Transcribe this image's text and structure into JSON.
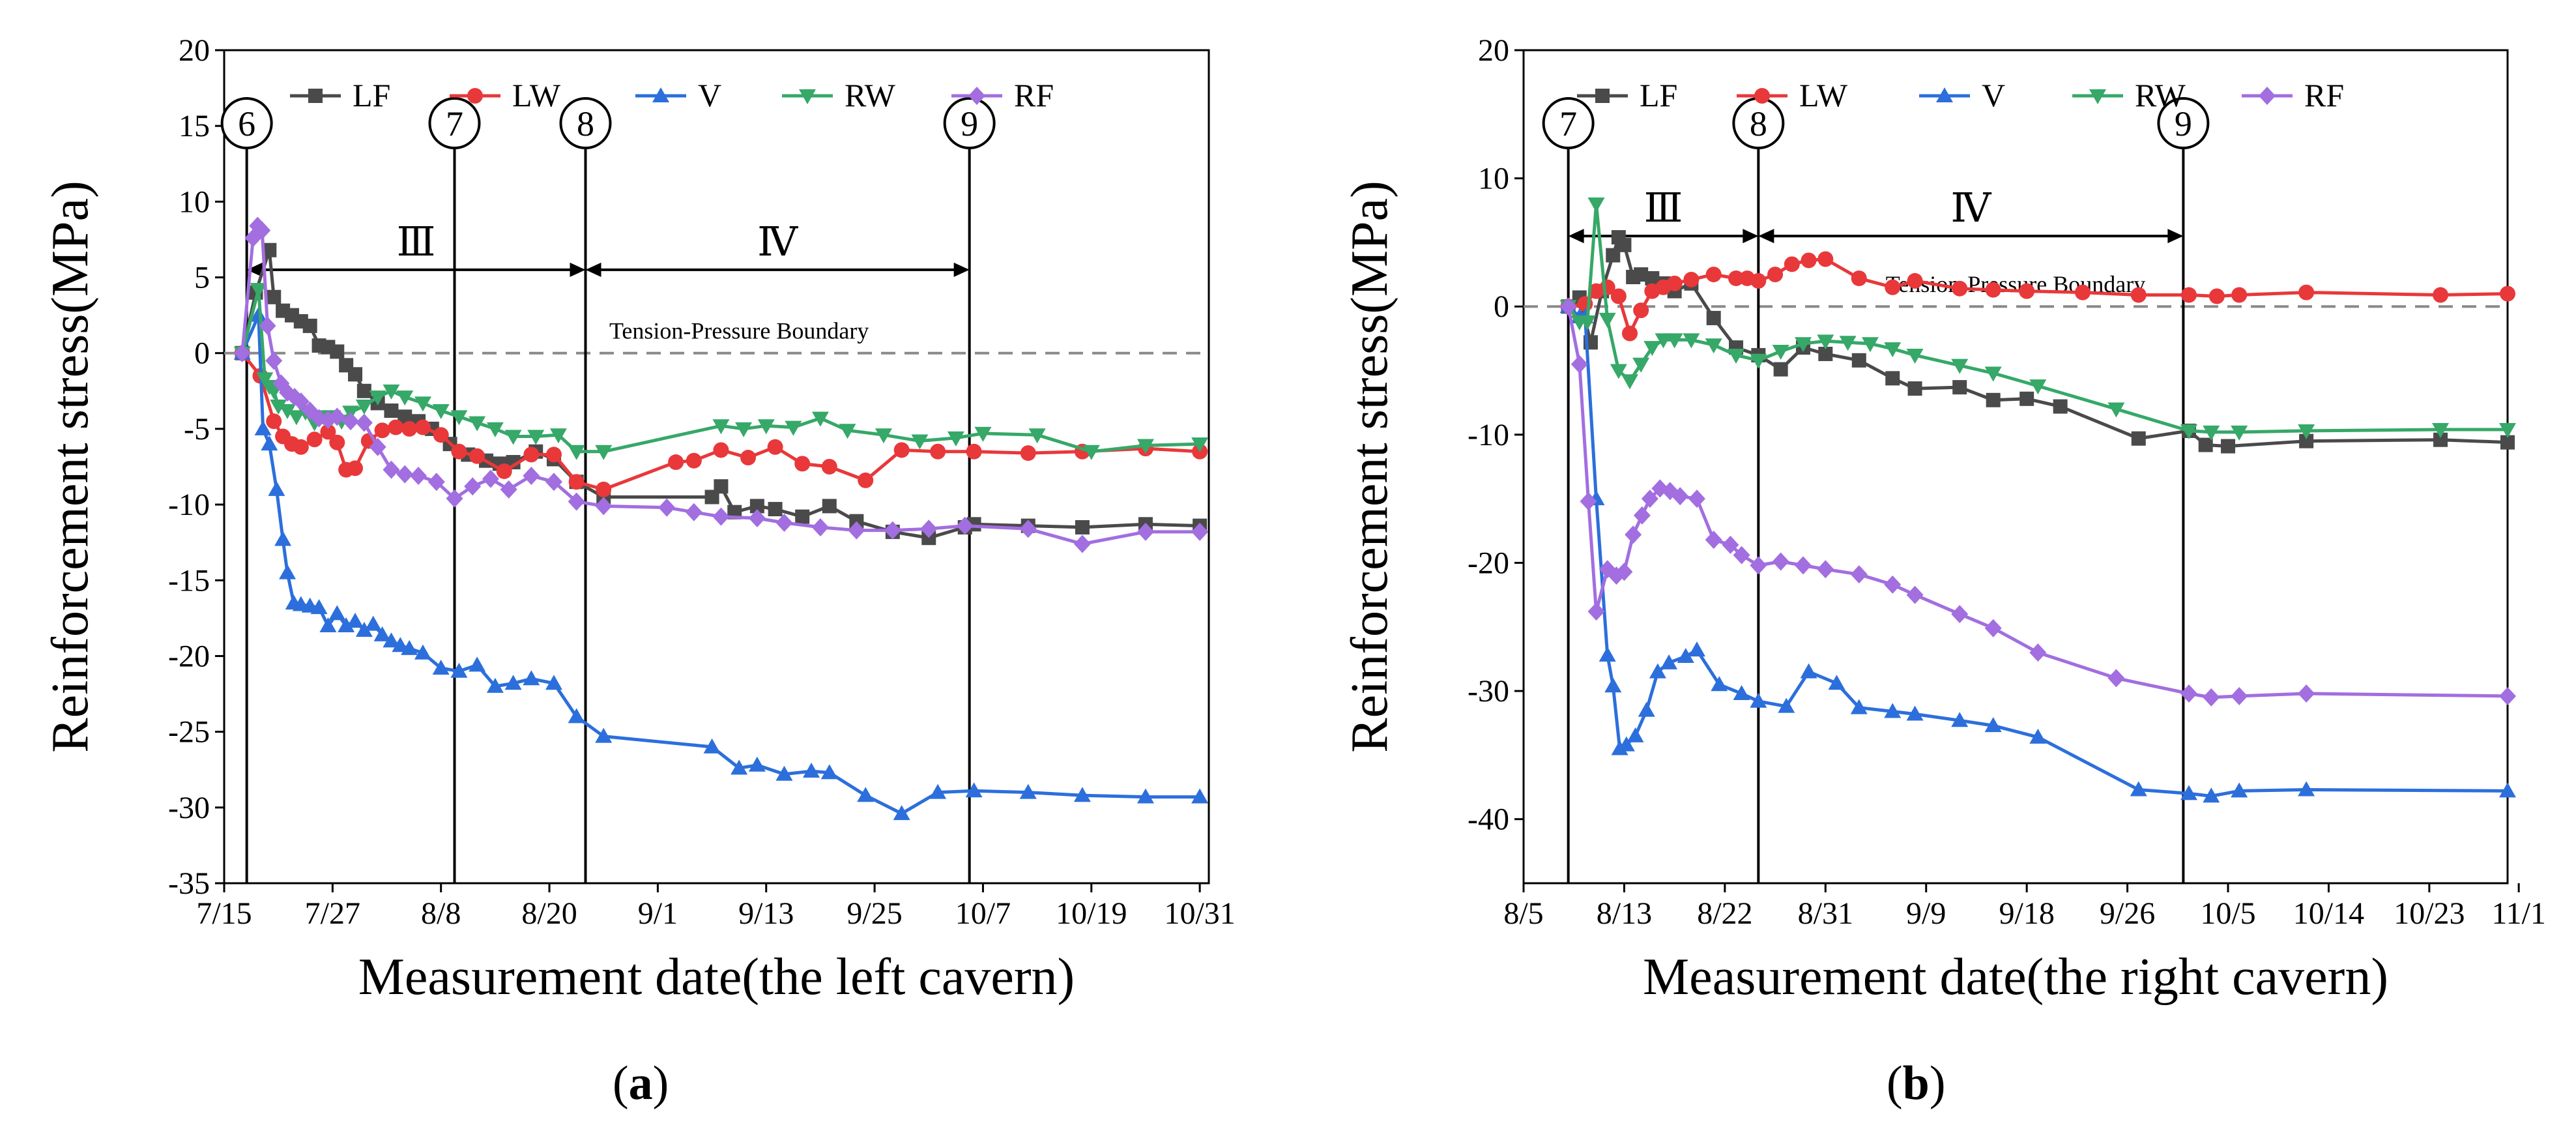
{
  "chart_data": [
    {
      "type": "line",
      "panel_label": "a",
      "title": "",
      "xlabel": "Measurement date(the left cavern)",
      "ylabel": "Reinforcement stress(MPa)",
      "x_unit": "day of year",
      "xlim": [
        196,
        305
      ],
      "ylim": [
        -35,
        20
      ],
      "x_ticks": [
        196,
        208,
        220,
        232,
        244,
        256,
        268,
        280,
        292,
        304
      ],
      "x_tick_labels": [
        "7/15",
        "7/27",
        "8/8",
        "8/20",
        "9/1",
        "9/13",
        "9/25",
        "10/7",
        "10/19",
        "10/31"
      ],
      "y_ticks": [
        -35,
        -30,
        -25,
        -20,
        -15,
        -10,
        -5,
        0,
        5,
        10,
        15,
        20
      ],
      "y_tick_labels": [
        "-35",
        "-30",
        "-25",
        "-20",
        "-15",
        "-10",
        "-5",
        "0",
        "5",
        "10",
        "15",
        "20"
      ],
      "legend_position": "top",
      "boundary": {
        "y": 0,
        "label": "Tension-Pressure Boundary",
        "label_x": 253
      },
      "stage_lines": [
        {
          "x": 198.5,
          "label": "6"
        },
        {
          "x": 221.5,
          "label": "7"
        },
        {
          "x": 236,
          "label": "8"
        },
        {
          "x": 278.5,
          "label": "9"
        }
      ],
      "stages": [
        {
          "label": "Ⅲ",
          "x_from": 198.5,
          "x_to": 236,
          "y": 5.5
        },
        {
          "label": "Ⅳ",
          "x_from": 236,
          "x_to": 278.5,
          "y": 5.5
        }
      ],
      "series": [
        {
          "name": "LF",
          "color": "#4a4a4a",
          "marker": "square",
          "x": [
            198,
            199.5,
            201,
            201.5,
            202.5,
            203.5,
            204.5,
            205.5,
            206.5,
            207.5,
            208.5,
            209.5,
            210.5,
            211.5,
            213,
            214.5,
            216,
            217.5,
            219,
            221,
            223,
            225,
            226.5,
            228,
            230.5,
            232.5,
            235,
            238,
            250,
            251,
            252.5,
            255,
            257,
            260,
            263,
            266,
            270,
            274,
            278,
            279,
            285,
            291,
            298,
            304
          ],
          "y": [
            0,
            4,
            6.8,
            3.7,
            2.8,
            2.5,
            2.1,
            1.8,
            0.5,
            0.4,
            0.1,
            -0.8,
            -1.4,
            -2.5,
            -3.3,
            -3.8,
            -4.2,
            -4.5,
            -5,
            -6,
            -6.7,
            -7.1,
            -7.3,
            -7.2,
            -6.5,
            -7,
            -8.5,
            -9.5,
            -9.5,
            -8.8,
            -10.5,
            -10.1,
            -10.3,
            -10.8,
            -10.1,
            -11.1,
            -11.8,
            -12.2,
            -11.5,
            -11.3,
            -11.4,
            -11.5,
            -11.3,
            -11.4
          ]
        },
        {
          "name": "LW",
          "color": "#e8383a",
          "marker": "circle",
          "x": [
            198,
            200,
            201.5,
            202.5,
            203.5,
            204.5,
            206,
            207.5,
            208.5,
            209.5,
            210.5,
            212,
            213.5,
            215,
            216.5,
            218,
            220,
            222,
            224,
            227,
            230,
            232.5,
            235,
            238,
            246,
            248,
            251,
            254,
            257,
            260,
            263,
            267,
            271,
            275,
            279,
            285,
            291,
            298,
            304
          ],
          "y": [
            0,
            -1.5,
            -4.5,
            -5.5,
            -6,
            -6.2,
            -5.7,
            -5.2,
            -5.9,
            -7.7,
            -7.6,
            -5.8,
            -5.1,
            -4.9,
            -5,
            -4.9,
            -5.4,
            -6.5,
            -6.8,
            -7.8,
            -6.7,
            -6.7,
            -8.5,
            -9,
            -7.2,
            -7.1,
            -6.4,
            -6.9,
            -6.2,
            -7.3,
            -7.5,
            -8.4,
            -6.4,
            -6.5,
            -6.5,
            -6.6,
            -6.5,
            -6.3,
            -6.5
          ]
        },
        {
          "name": "V",
          "color": "#2c6fdc",
          "marker": "triangle",
          "x": [
            198,
            199.8,
            200.3,
            201,
            201.8,
            202.5,
            203,
            203.7,
            204.5,
            205.5,
            206.5,
            207.5,
            208.5,
            209.5,
            210.5,
            211.5,
            212.5,
            213.5,
            214.5,
            215.5,
            216.5,
            218,
            220,
            222,
            224,
            226,
            228,
            230,
            232.5,
            235,
            238,
            250,
            253,
            255,
            258,
            261,
            263,
            267,
            271,
            275,
            279,
            285,
            291,
            298,
            304
          ],
          "y": [
            0,
            2.5,
            -5,
            -6,
            -9,
            -12.3,
            -14.5,
            -16.5,
            -16.6,
            -16.7,
            -16.8,
            -18,
            -17.2,
            -18,
            -17.7,
            -18.3,
            -17.9,
            -18.6,
            -19,
            -19.3,
            -19.5,
            -19.8,
            -20.8,
            -21,
            -20.6,
            -22,
            -21.8,
            -21.5,
            -21.8,
            -24,
            -25.3,
            -26,
            -27.4,
            -27.2,
            -27.8,
            -27.6,
            -27.7,
            -29.2,
            -30.4,
            -29,
            -28.9,
            -29,
            -29.2,
            -29.3,
            -29.3
          ]
        },
        {
          "name": "RW",
          "color": "#36a868",
          "marker": "triangle-down",
          "x": [
            198,
            199.8,
            200.5,
            201,
            201.5,
            202,
            203,
            204,
            205,
            206,
            207,
            208,
            209,
            210,
            211.5,
            213,
            214.5,
            216,
            218,
            220,
            222,
            224,
            226,
            228,
            230.5,
            233,
            235,
            238,
            251,
            253.5,
            256,
            259,
            262,
            265,
            269,
            273,
            277,
            280,
            286,
            292,
            298,
            304
          ],
          "y": [
            0,
            4.2,
            -1.7,
            -2.2,
            -2.5,
            -3.5,
            -3.8,
            -4.2,
            -3.9,
            -4.6,
            -4.2,
            -4.2,
            -4.5,
            -3.9,
            -3.5,
            -2.9,
            -2.5,
            -2.9,
            -3.3,
            -3.8,
            -4.2,
            -4.6,
            -5,
            -5.5,
            -5.5,
            -5.4,
            -6.5,
            -6.5,
            -4.8,
            -5,
            -4.8,
            -4.9,
            -4.3,
            -5.1,
            -5.4,
            -5.8,
            -5.6,
            -5.3,
            -5.4,
            -6.5,
            -6.1,
            -6
          ]
        },
        {
          "name": "RF",
          "color": "#a26ee0",
          "marker": "diamond",
          "x": [
            198,
            199.2,
            199.7,
            200.2,
            200.8,
            201.5,
            202.3,
            203,
            203.8,
            204.5,
            205.5,
            206.5,
            207.5,
            208.5,
            210,
            211.5,
            213,
            214.5,
            216,
            217.5,
            219.5,
            221.5,
            223.5,
            225.5,
            227.5,
            230,
            232.5,
            235,
            238,
            245,
            248,
            251,
            255,
            258,
            262,
            266,
            270,
            274,
            278,
            285,
            291,
            298,
            304
          ],
          "y": [
            0,
            7.6,
            8.4,
            8.1,
            1.8,
            -0.5,
            -2,
            -2.6,
            -2.9,
            -3.2,
            -3.8,
            -4.3,
            -4.4,
            -4.2,
            -4.5,
            -4.6,
            -6.2,
            -7.7,
            -8,
            -8.1,
            -8.5,
            -9.6,
            -8.8,
            -8.3,
            -9,
            -8.1,
            -8.5,
            -9.8,
            -10.1,
            -10.2,
            -10.5,
            -10.8,
            -10.9,
            -11.2,
            -11.5,
            -11.7,
            -11.7,
            -11.6,
            -11.4,
            -11.6,
            -12.6,
            -11.8,
            -11.8
          ]
        }
      ]
    },
    {
      "type": "line",
      "panel_label": "b",
      "title": "",
      "xlabel": "Measurement date(the right cavern)",
      "ylabel": "Reinforcement stress(MPa)",
      "x_unit": "day of year",
      "xlim": [
        217,
        305
      ],
      "ylim": [
        -45,
        20
      ],
      "x_ticks": [
        217,
        226,
        235,
        244,
        253,
        262,
        271,
        280,
        289,
        298,
        306
      ],
      "x_tick_labels": [
        "8/5",
        "8/13",
        "8/22",
        "8/31",
        "9/9",
        "9/18",
        "9/26",
        "10/5",
        "10/14",
        "10/23",
        "11/1"
      ],
      "y_ticks": [
        -40,
        -30,
        -20,
        -10,
        0,
        10,
        20
      ],
      "y_tick_labels": [
        "-40",
        "-30",
        "-20",
        "-10",
        "0",
        "10",
        "20"
      ],
      "legend_position": "top",
      "boundary": {
        "y": 0,
        "label": "Tension-Pressure Boundary",
        "label_x": 261
      },
      "stage_lines": [
        {
          "x": 221,
          "label": "7"
        },
        {
          "x": 238,
          "label": "8"
        },
        {
          "x": 276,
          "label": "9"
        }
      ],
      "stages": [
        {
          "label": "Ⅲ",
          "x_from": 221,
          "x_to": 238,
          "y": 5.5
        },
        {
          "label": "Ⅳ",
          "x_from": 238,
          "x_to": 276,
          "y": 5.5
        }
      ],
      "series": [
        {
          "name": "LF",
          "color": "#4a4a4a",
          "marker": "square",
          "x": [
            221,
            222,
            223,
            224,
            225,
            225.5,
            226,
            226.8,
            227.5,
            228.5,
            229.5,
            230.5,
            232,
            234,
            236,
            238,
            240,
            242,
            244,
            247,
            250,
            252,
            256,
            259,
            262,
            265,
            272,
            276.5,
            278,
            280,
            287,
            299,
            305
          ],
          "y": [
            0,
            0.7,
            -2.8,
            1.2,
            4,
            5.4,
            4.8,
            2.3,
            2.5,
            2.2,
            1.8,
            1.2,
            1.8,
            -0.9,
            -3.2,
            -3.8,
            -4.9,
            -3.2,
            -3.7,
            -4.2,
            -5.6,
            -6.4,
            -6.3,
            -7.3,
            -7.2,
            -7.8,
            -10.3,
            -9.7,
            -10.8,
            -10.9,
            -10.5,
            -10.4,
            -10.6
          ]
        },
        {
          "name": "LW",
          "color": "#e8383a",
          "marker": "circle",
          "x": [
            221,
            222.5,
            223.5,
            224.5,
            225.5,
            226.5,
            227.5,
            228.5,
            229.5,
            230.5,
            232,
            234,
            236,
            237,
            238,
            239.5,
            241,
            242.5,
            244,
            247,
            250,
            252,
            256,
            259,
            262,
            267,
            272,
            276.5,
            279,
            281,
            287,
            299,
            305
          ],
          "y": [
            0,
            0.2,
            1.2,
            1.5,
            0.8,
            -2.1,
            -0.3,
            1.2,
            1.5,
            1.8,
            2.1,
            2.5,
            2.2,
            2.2,
            2,
            2.5,
            3.3,
            3.6,
            3.7,
            2.2,
            1.5,
            2,
            1.4,
            1.3,
            1.2,
            1.1,
            0.9,
            0.9,
            0.8,
            0.9,
            1.1,
            0.9,
            1
          ]
        },
        {
          "name": "V",
          "color": "#2c6fdc",
          "marker": "triangle",
          "x": [
            221,
            222,
            222.5,
            223.5,
            224.5,
            225,
            225.6,
            226.2,
            227,
            228,
            229,
            230,
            231.5,
            232.5,
            234.5,
            236.5,
            238,
            240.5,
            242.5,
            245,
            247,
            250,
            252,
            256,
            259,
            263,
            272,
            276.5,
            278.5,
            281,
            287,
            305
          ],
          "y": [
            0,
            -0.8,
            -0.8,
            -15,
            -27.2,
            -29.6,
            -34.5,
            -34.2,
            -33.5,
            -31.5,
            -28.5,
            -27.8,
            -27.3,
            -26.8,
            -29.5,
            -30.2,
            -30.8,
            -31.2,
            -28.5,
            -29.4,
            -31.3,
            -31.6,
            -31.8,
            -32.3,
            -32.7,
            -33.6,
            -37.7,
            -38,
            -38.2,
            -37.8,
            -37.7,
            -37.8
          ]
        },
        {
          "name": "RW",
          "color": "#36a868",
          "marker": "triangle-down",
          "x": [
            221,
            222,
            222.7,
            223.5,
            224.5,
            225.5,
            226.5,
            227.5,
            228.5,
            229.5,
            230.5,
            232,
            234,
            236,
            238,
            240,
            242,
            244,
            246,
            248,
            250,
            252,
            256,
            259,
            263,
            270,
            276.5,
            278.5,
            281,
            287,
            299,
            305
          ],
          "y": [
            0,
            -1.2,
            -1.2,
            8,
            -1,
            -5,
            -5.8,
            -4.5,
            -3.2,
            -2.6,
            -2.6,
            -2.6,
            -3,
            -3.8,
            -4.2,
            -3.5,
            -2.9,
            -2.7,
            -2.8,
            -2.9,
            -3.3,
            -3.8,
            -4.6,
            -5.2,
            -6.2,
            -8,
            -9.7,
            -9.8,
            -9.8,
            -9.7,
            -9.6,
            -9.6
          ]
        },
        {
          "name": "RF",
          "color": "#a26ee0",
          "marker": "diamond",
          "x": [
            221,
            222,
            222.8,
            223.5,
            224.5,
            225.3,
            226,
            226.8,
            227.6,
            228.3,
            229.2,
            230.1,
            231,
            232.5,
            234,
            235.5,
            236.5,
            238,
            240,
            242,
            244,
            247,
            250,
            252,
            256,
            259,
            263,
            270,
            276.5,
            278.5,
            281,
            287,
            305
          ],
          "y": [
            0,
            -4.5,
            -15.2,
            -23.8,
            -20.5,
            -21,
            -20.7,
            -17.8,
            -16.3,
            -15,
            -14.2,
            -14.4,
            -14.8,
            -15,
            -18.2,
            -18.6,
            -19.4,
            -20.2,
            -19.9,
            -20.2,
            -20.5,
            -20.9,
            -21.7,
            -22.5,
            -24,
            -25.1,
            -27,
            -29,
            -30.2,
            -30.5,
            -30.4,
            -30.2,
            -30.4
          ]
        }
      ]
    }
  ]
}
